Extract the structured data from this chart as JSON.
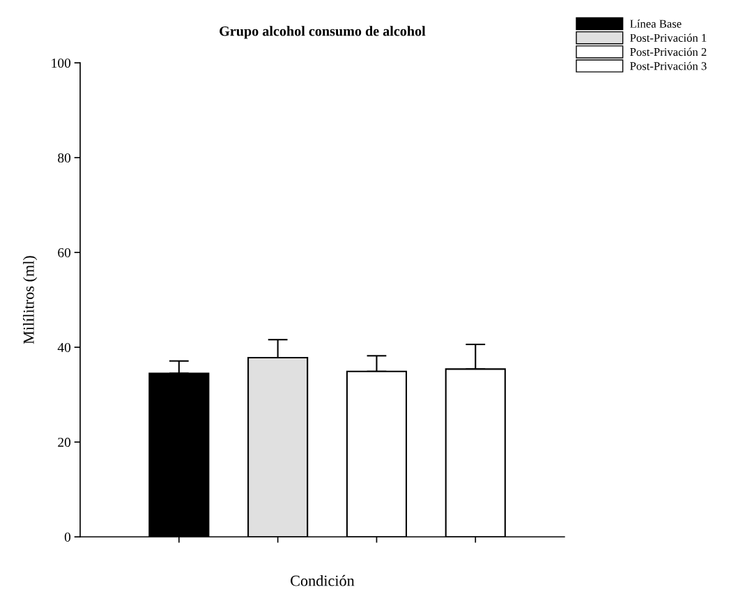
{
  "chart_data": {
    "type": "bar",
    "title": "Grupo alcohol consumo de alcohol",
    "xlabel": "Condición",
    "ylabel": "Milílitros (ml)",
    "categories": [
      null,
      null,
      null,
      null
    ],
    "series": [
      {
        "name": "Línea Base",
        "color": "#000000",
        "values": [
          34.5,
          null,
          null,
          null
        ],
        "errors": [
          [
            34.5,
            37.1
          ],
          null,
          null,
          null
        ]
      },
      {
        "name": "Post-Privación 1",
        "color": "#e0e0e0",
        "values": [
          null,
          37.8,
          null,
          null
        ],
        "errors": [
          null,
          [
            37.8,
            41.6
          ],
          null,
          null
        ]
      },
      {
        "name": "Post-Privación 2",
        "color": "#ffffff",
        "values": [
          null,
          null,
          34.9,
          null
        ],
        "errors": [
          null,
          null,
          [
            34.9,
            38.2
          ],
          null
        ]
      },
      {
        "name": "Post-Privación 3",
        "color": "#ffffff",
        "values": [
          null,
          null,
          null,
          35.4
        ],
        "errors": [
          null,
          null,
          null,
          [
            35.4,
            40.6
          ]
        ]
      }
    ],
    "ylim": [
      0,
      100
    ],
    "yticks": [
      0,
      20,
      40,
      60,
      80,
      100
    ],
    "grid": false,
    "legend": "top right"
  }
}
